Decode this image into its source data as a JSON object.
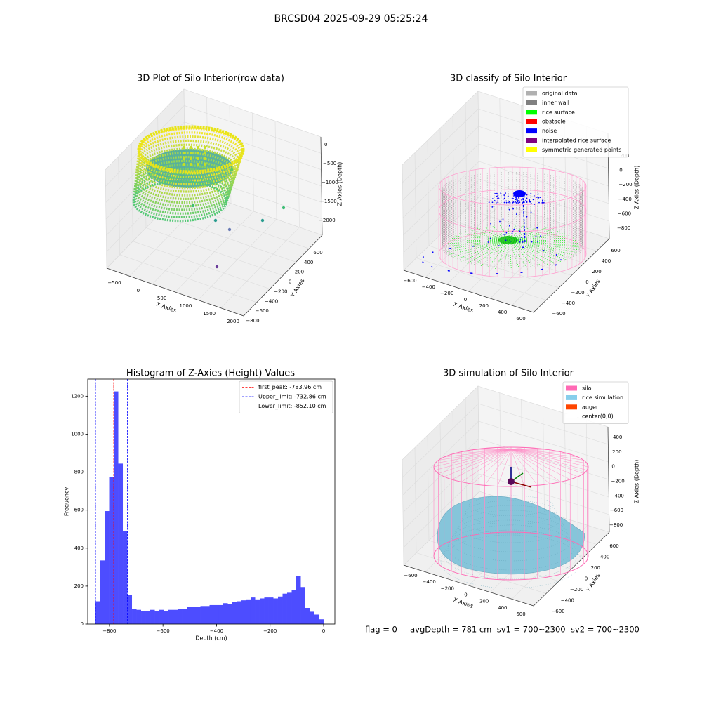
{
  "title": "BRCSD04 2025-09-29 05:25:24",
  "footer": "flag = 0     avgDepth = 781 cm  sv1 = 700~2300  sv2 = 700~2300",
  "chart_data": [
    {
      "type": "scatter3d",
      "title": "3D Plot of Silo Interior(row data)",
      "xlabel": "X Axies",
      "ylabel": "Y Axies",
      "zlabel": "Z Axies (Depth)",
      "xticks": [
        {
          "value": -500,
          "label": "−500"
        },
        0,
        500,
        1000,
        1500,
        2000
      ],
      "yticks": [
        {
          "value": -800,
          "label": "−800"
        },
        {
          "value": -600,
          "label": "−600"
        },
        {
          "value": -400,
          "label": "−400"
        },
        {
          "value": -200,
          "label": "−200"
        },
        0,
        200,
        400,
        600
      ],
      "zticks": [
        0,
        {
          "value": -500,
          "label": "−500"
        },
        {
          "value": -1000,
          "label": "−1000"
        },
        {
          "value": -1500,
          "label": "−1500"
        },
        {
          "value": -2000,
          "label": "−2000"
        }
      ]
    },
    {
      "type": "scatter3d",
      "title": "3D classify of Silo Interior",
      "xlabel": "X Axies",
      "ylabel": "Y Axies",
      "zlabel": "Z Axies (Depth)",
      "xticks": [
        {
          "value": -600,
          "label": "−600"
        },
        {
          "value": -400,
          "label": "−400"
        },
        {
          "value": -200,
          "label": "−200"
        },
        0,
        200,
        400,
        600
      ],
      "yticks": [
        {
          "value": -600,
          "label": "−600"
        },
        {
          "value": -400,
          "label": "−400"
        },
        {
          "value": -200,
          "label": "−200"
        },
        0,
        200,
        400,
        600
      ],
      "zticks": [
        200,
        0,
        {
          "value": -200,
          "label": "−200"
        },
        {
          "value": -400,
          "label": "−400"
        },
        {
          "value": -600,
          "label": "−600"
        },
        {
          "value": -800,
          "label": "−800"
        }
      ],
      "series": [
        {
          "name": "original data",
          "color": "#b0b0b0"
        },
        {
          "name": "inner wall",
          "color": "#808080"
        },
        {
          "name": "rice surface",
          "color": "#00ff00"
        },
        {
          "name": "obstacle",
          "color": "#ff0000"
        },
        {
          "name": "noise",
          "color": "#0000ff"
        },
        {
          "name": "interpolated rice surface",
          "color": "#800080"
        },
        {
          "name": "symmetric generated points",
          "color": "#ffff00"
        }
      ]
    },
    {
      "type": "histogram",
      "title": "Histogram of Z-Axies (Height) Values",
      "xlabel": "Depth (cm)",
      "ylabel": "Frequency",
      "color": "#4d4dff",
      "bins": [
        -852.1,
        -835.06,
        -818.02,
        -800.97,
        -783.93,
        -766.89,
        -749.85,
        -732.81,
        -715.76,
        -698.72,
        -681.68,
        -664.64,
        -647.6,
        -630.55,
        -613.51,
        -596.47,
        -579.43,
        -562.39,
        -545.34,
        -528.3,
        -511.26,
        -494.22,
        -477.18,
        -460.13,
        -443.09,
        -426.05,
        -409.01,
        -391.97,
        -374.92,
        -357.88,
        -340.84,
        -323.8,
        -306.76,
        -289.71,
        -272.67,
        -255.63,
        -238.59,
        -221.55,
        -204.5,
        -187.46,
        -170.42,
        -153.38,
        -136.34,
        -119.29,
        -102.25,
        -85.21,
        -68.17,
        -51.13,
        -34.08,
        -17.04,
        0
      ],
      "values": [
        120,
        335,
        595,
        775,
        1225,
        845,
        490,
        155,
        80,
        75,
        70,
        70,
        75,
        70,
        75,
        70,
        75,
        75,
        80,
        80,
        90,
        90,
        90,
        95,
        95,
        100,
        100,
        100,
        110,
        105,
        115,
        120,
        125,
        130,
        140,
        130,
        135,
        140,
        140,
        135,
        145,
        160,
        165,
        180,
        255,
        195,
        85,
        65,
        50,
        25
      ],
      "xlim": [
        -881,
        42
      ],
      "ylim": [
        0,
        1290
      ],
      "xticks": [
        {
          "value": -800,
          "label": "−800"
        },
        {
          "value": -600,
          "label": "−600"
        },
        {
          "value": -400,
          "label": "−400"
        },
        {
          "value": -200,
          "label": "−200"
        },
        0
      ],
      "yticks": [
        0,
        200,
        400,
        600,
        800,
        1000,
        1200
      ],
      "lines": [
        {
          "name": "first_peak: -783.96 cm",
          "value": -783.96,
          "color": "#ff0000"
        },
        {
          "name": "Upper_limit: -732.86 cm",
          "value": -732.86,
          "color": "#0000ff"
        },
        {
          "name": "Lower_limit: -852.10 cm",
          "value": -852.1,
          "color": "#0000ff"
        }
      ]
    },
    {
      "type": "scatter3d",
      "title": "3D simulation of Silo Interior",
      "xlabel": "X Axies",
      "ylabel": "Y Axies",
      "zlabel": "Z Axies (Depth)",
      "xticks": [
        {
          "value": -600,
          "label": "−600"
        },
        {
          "value": -400,
          "label": "−400"
        },
        {
          "value": -200,
          "label": "−200"
        },
        0,
        200,
        400,
        600
      ],
      "yticks": [
        {
          "value": -600,
          "label": "−600"
        },
        {
          "value": -400,
          "label": "−400"
        },
        {
          "value": -200,
          "label": "−200"
        },
        0,
        200,
        400,
        600
      ],
      "zticks": [
        400,
        200,
        0,
        {
          "value": -200,
          "label": "−200"
        },
        {
          "value": -400,
          "label": "−400"
        },
        {
          "value": -600,
          "label": "−600"
        },
        {
          "value": -800,
          "label": "−800"
        }
      ],
      "series": [
        {
          "name": "silo",
          "color": "#ff69b4"
        },
        {
          "name": "rice simulation",
          "color": "#87ceeb"
        },
        {
          "name": "auger",
          "color": "#ff4500"
        },
        {
          "name": "center(0,0)",
          "color": "#ffffff"
        }
      ]
    }
  ]
}
